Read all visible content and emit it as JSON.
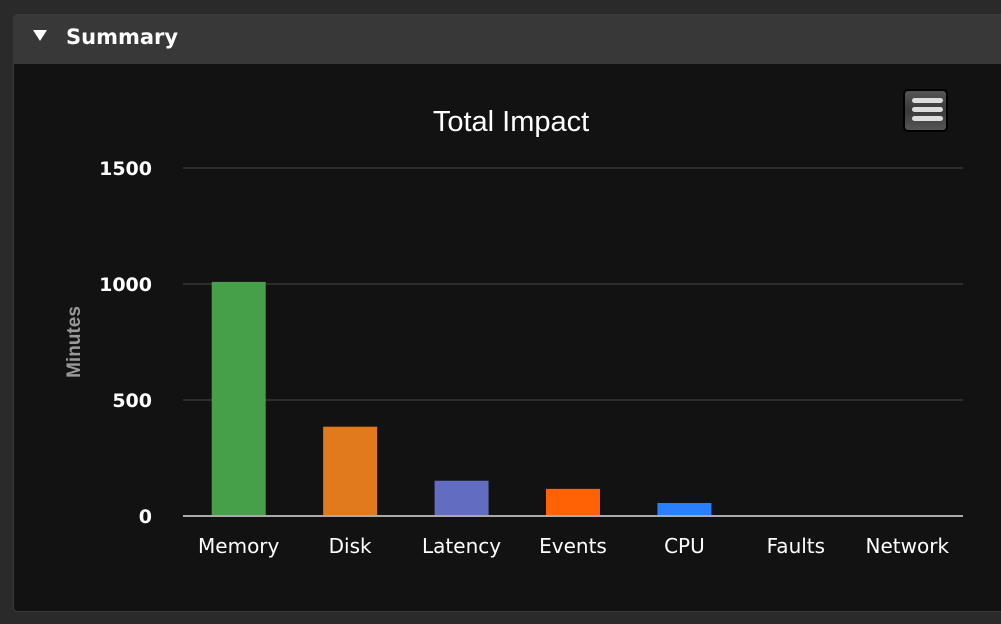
{
  "panel": {
    "title": "Summary"
  },
  "chart_data": {
    "type": "bar",
    "title": "Total Impact",
    "ylabel": "Minutes",
    "xlabel": "",
    "ylim": [
      0,
      1500
    ],
    "yticks": [
      "0",
      "500",
      "1000",
      "1500"
    ],
    "grid": true,
    "categories": [
      "Memory",
      "Disk",
      "Latency",
      "Events",
      "CPU",
      "Faults",
      "Network"
    ],
    "values": [
      1009,
      385,
      152,
      117,
      56,
      0,
      0
    ],
    "colors": [
      "#45a049",
      "#e07a1c",
      "#626dc2",
      "#ff6105",
      "#2a7fff",
      "#888888",
      "#888888"
    ]
  },
  "menu_icon": "hamburger-menu-icon"
}
